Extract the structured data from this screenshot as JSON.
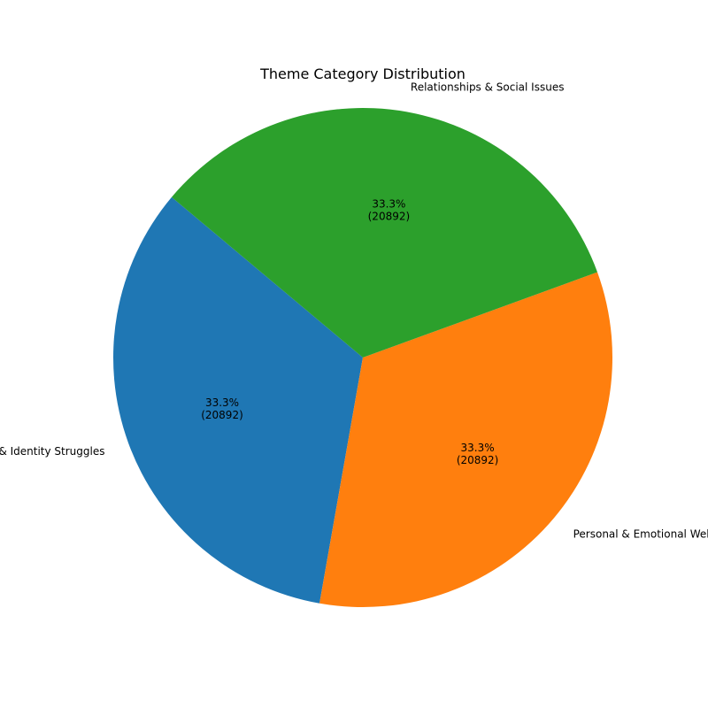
{
  "chart_data": {
    "type": "pie",
    "title": "Theme Category Distribution",
    "slices": [
      {
        "label": "Self-Expression & Identity Struggles",
        "value": 20892,
        "percent_label": "33.3%",
        "count_label": "(20892)",
        "color": "#1f77b4"
      },
      {
        "label": "Personal & Emotional Well-being",
        "value": 20892,
        "percent_label": "33.3%",
        "count_label": "(20892)",
        "color": "#ff7f0e"
      },
      {
        "label": "Relationships & Social Issues",
        "value": 20892,
        "percent_label": "33.3%",
        "count_label": "(20892)",
        "color": "#2ca02c"
      }
    ]
  }
}
